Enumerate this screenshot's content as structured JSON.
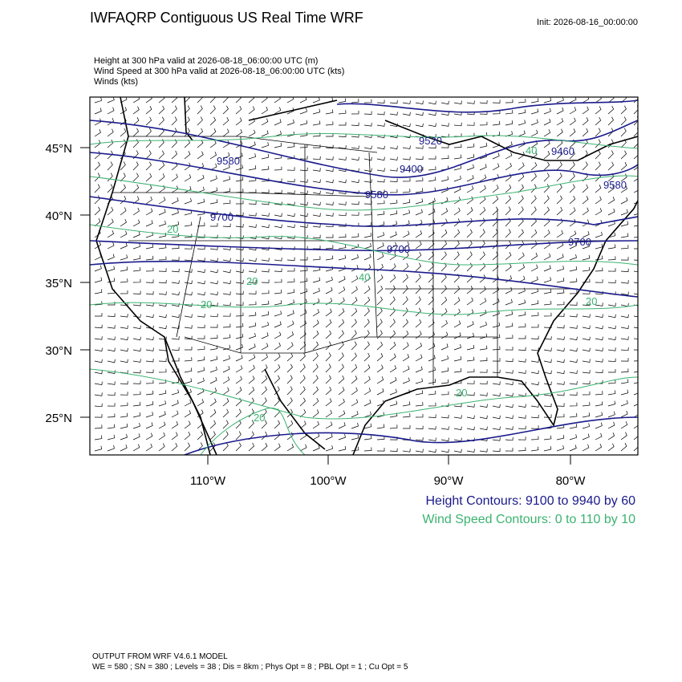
{
  "header": {
    "title": "IWFAQRP Contiguous US Real Time WRF",
    "init": "Init: 2026-08-16_00:00:00",
    "fields": [
      "Height at 300 hPa valid at 2026-08-18_06:00:00 UTC   (m)",
      "Wind Speed at 300 hPa valid at 2026-08-18_06:00:00 UTC   (kts)",
      "Winds   (kts)"
    ]
  },
  "map": {
    "lat_labels": [
      "45°N",
      "40°N",
      "35°N",
      "30°N",
      "25°N"
    ],
    "lon_labels": [
      "110°W",
      "100°W",
      "90°W",
      "80°W"
    ],
    "height_labels": [
      "9580",
      "9520",
      "9400",
      "9460",
      "9580",
      "9700",
      "9700",
      "9580",
      "9700"
    ],
    "speed_labels": [
      "40",
      "20",
      "20",
      "20",
      "20",
      "20",
      "20",
      "40"
    ]
  },
  "legend": {
    "height": "Height Contours: 9100 to 9940 by 60",
    "speed": "Wind Speed Contours: 0 to 110 by 10"
  },
  "footer": {
    "model": "OUTPUT FROM WRF V4.6.1 MODEL",
    "settings": "WE = 580 ; SN = 380 ; Levels = 38 ; Dis = 8km ; Phys Opt = 8 ; PBL Opt = 1 ; Cu Opt = 5"
  }
}
